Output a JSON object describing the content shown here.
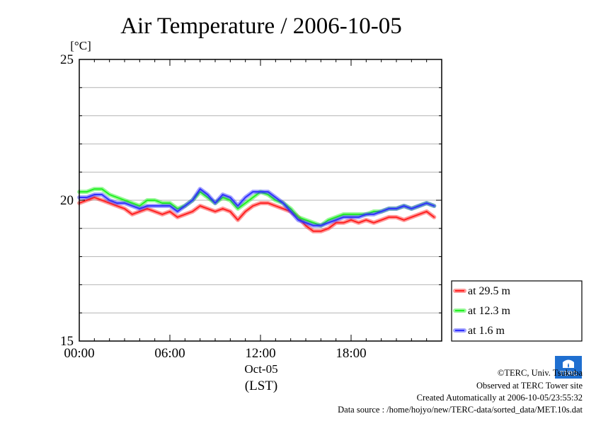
{
  "chart_data": {
    "type": "line",
    "title": "Air Temperature / 2006-10-05",
    "y_unit_label": "[°C]",
    "ylim": [
      15,
      25
    ],
    "y_major_ticks": [
      15,
      20,
      25
    ],
    "y_minor_step": 1,
    "xlim_hours": [
      0,
      24
    ],
    "x_tick_labels": [
      "00:00",
      "06:00",
      "12:00",
      "18:00"
    ],
    "x_date_label": "Oct-05",
    "x_zone_label": "(LST)",
    "grid": "horizontal",
    "legend_position": "bottom-right, outside plot",
    "series": [
      {
        "name": "at 29.5 m",
        "color": "#ff2020",
        "points": [
          [
            0.0,
            19.9
          ],
          [
            0.5,
            20.0
          ],
          [
            1.0,
            20.1
          ],
          [
            1.5,
            20.0
          ],
          [
            2.0,
            19.9
          ],
          [
            2.5,
            19.8
          ],
          [
            3.0,
            19.7
          ],
          [
            3.5,
            19.5
          ],
          [
            4.0,
            19.6
          ],
          [
            4.5,
            19.7
          ],
          [
            5.0,
            19.6
          ],
          [
            5.5,
            19.5
          ],
          [
            6.0,
            19.6
          ],
          [
            6.5,
            19.4
          ],
          [
            7.0,
            19.5
          ],
          [
            7.5,
            19.6
          ],
          [
            8.0,
            19.8
          ],
          [
            8.5,
            19.7
          ],
          [
            9.0,
            19.6
          ],
          [
            9.5,
            19.7
          ],
          [
            10.0,
            19.6
          ],
          [
            10.5,
            19.3
          ],
          [
            11.0,
            19.6
          ],
          [
            11.5,
            19.8
          ],
          [
            12.0,
            19.9
          ],
          [
            12.5,
            19.9
          ],
          [
            13.0,
            19.8
          ],
          [
            13.5,
            19.7
          ],
          [
            14.0,
            19.6
          ],
          [
            14.5,
            19.4
          ],
          [
            15.0,
            19.1
          ],
          [
            15.5,
            18.9
          ],
          [
            16.0,
            18.9
          ],
          [
            16.5,
            19.0
          ],
          [
            17.0,
            19.2
          ],
          [
            17.5,
            19.2
          ],
          [
            18.0,
            19.3
          ],
          [
            18.5,
            19.2
          ],
          [
            19.0,
            19.3
          ],
          [
            19.5,
            19.2
          ],
          [
            20.0,
            19.3
          ],
          [
            20.5,
            19.4
          ],
          [
            21.0,
            19.4
          ],
          [
            21.5,
            19.3
          ],
          [
            22.0,
            19.4
          ],
          [
            22.5,
            19.5
          ],
          [
            23.0,
            19.6
          ],
          [
            23.5,
            19.4
          ]
        ]
      },
      {
        "name": "at 12.3 m",
        "color": "#20f020",
        "points": [
          [
            0.0,
            20.3
          ],
          [
            0.5,
            20.3
          ],
          [
            1.0,
            20.4
          ],
          [
            1.5,
            20.4
          ],
          [
            2.0,
            20.2
          ],
          [
            2.5,
            20.1
          ],
          [
            3.0,
            20.0
          ],
          [
            3.5,
            19.9
          ],
          [
            4.0,
            19.8
          ],
          [
            4.5,
            20.0
          ],
          [
            5.0,
            20.0
          ],
          [
            5.5,
            19.9
          ],
          [
            6.0,
            19.9
          ],
          [
            6.5,
            19.7
          ],
          [
            7.0,
            19.8
          ],
          [
            7.5,
            20.0
          ],
          [
            8.0,
            20.3
          ],
          [
            8.5,
            20.1
          ],
          [
            9.0,
            19.9
          ],
          [
            9.5,
            20.1
          ],
          [
            10.0,
            20.0
          ],
          [
            10.5,
            19.7
          ],
          [
            11.0,
            19.9
          ],
          [
            11.5,
            20.1
          ],
          [
            12.0,
            20.3
          ],
          [
            12.5,
            20.2
          ],
          [
            13.0,
            20.0
          ],
          [
            13.5,
            19.9
          ],
          [
            14.0,
            19.7
          ],
          [
            14.5,
            19.4
          ],
          [
            15.0,
            19.3
          ],
          [
            15.5,
            19.2
          ],
          [
            16.0,
            19.1
          ],
          [
            16.5,
            19.3
          ],
          [
            17.0,
            19.4
          ],
          [
            17.5,
            19.5
          ],
          [
            18.0,
            19.5
          ],
          [
            18.5,
            19.5
          ],
          [
            19.0,
            19.5
          ],
          [
            19.5,
            19.6
          ],
          [
            20.0,
            19.6
          ],
          [
            20.5,
            19.7
          ],
          [
            21.0,
            19.7
          ],
          [
            21.5,
            19.8
          ],
          [
            22.0,
            19.7
          ],
          [
            22.5,
            19.8
          ],
          [
            23.0,
            19.9
          ],
          [
            23.5,
            19.8
          ]
        ]
      },
      {
        "name": "at 1.6 m",
        "color": "#3030ff",
        "points": [
          [
            0.0,
            20.1
          ],
          [
            0.5,
            20.1
          ],
          [
            1.0,
            20.2
          ],
          [
            1.5,
            20.2
          ],
          [
            2.0,
            20.0
          ],
          [
            2.5,
            19.9
          ],
          [
            3.0,
            19.9
          ],
          [
            3.5,
            19.8
          ],
          [
            4.0,
            19.7
          ],
          [
            4.5,
            19.8
          ],
          [
            5.0,
            19.8
          ],
          [
            5.5,
            19.8
          ],
          [
            6.0,
            19.8
          ],
          [
            6.5,
            19.6
          ],
          [
            7.0,
            19.8
          ],
          [
            7.5,
            20.0
          ],
          [
            8.0,
            20.4
          ],
          [
            8.5,
            20.2
          ],
          [
            9.0,
            19.9
          ],
          [
            9.5,
            20.2
          ],
          [
            10.0,
            20.1
          ],
          [
            10.5,
            19.8
          ],
          [
            11.0,
            20.1
          ],
          [
            11.5,
            20.3
          ],
          [
            12.0,
            20.3
          ],
          [
            12.5,
            20.3
          ],
          [
            13.0,
            20.1
          ],
          [
            13.5,
            19.9
          ],
          [
            14.0,
            19.6
          ],
          [
            14.5,
            19.3
          ],
          [
            15.0,
            19.2
          ],
          [
            15.5,
            19.1
          ],
          [
            16.0,
            19.1
          ],
          [
            16.5,
            19.2
          ],
          [
            17.0,
            19.3
          ],
          [
            17.5,
            19.4
          ],
          [
            18.0,
            19.4
          ],
          [
            18.5,
            19.4
          ],
          [
            19.0,
            19.5
          ],
          [
            19.5,
            19.5
          ],
          [
            20.0,
            19.6
          ],
          [
            20.5,
            19.7
          ],
          [
            21.0,
            19.7
          ],
          [
            21.5,
            19.8
          ],
          [
            22.0,
            19.7
          ],
          [
            22.5,
            19.8
          ],
          [
            23.0,
            19.9
          ],
          [
            23.5,
            19.8
          ]
        ]
      }
    ]
  },
  "logo_text": "TERC",
  "credits": {
    "copyright": "©TERC, Univ. Tsukuba",
    "observed": "Observed at TERC Tower site",
    "created": "Created Automatically at 2006-10-05/23:55:32",
    "source": "Data source : /home/hojyo/new/TERC-data/sorted_data/MET.10s.dat"
  }
}
